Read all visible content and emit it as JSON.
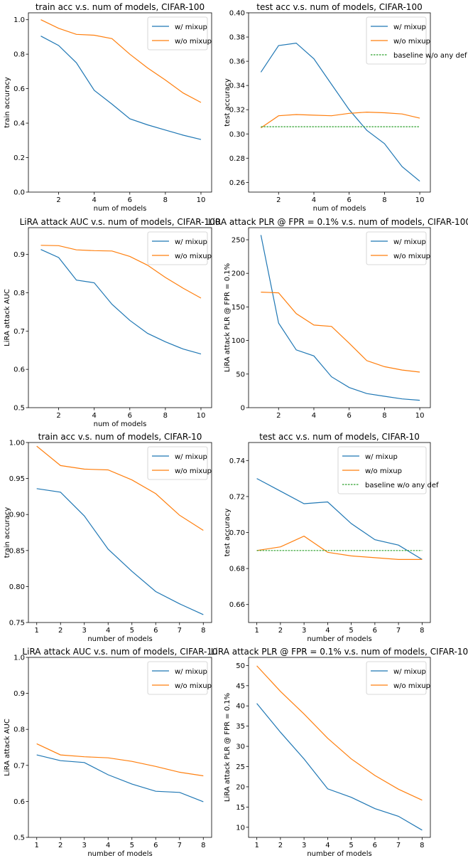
{
  "chart_data": [
    {
      "type": "line",
      "title": "train acc v.s. num of models, CIFAR-100",
      "xlabel": "num of models",
      "ylabel": "train accuracy",
      "xlim": [
        0.3,
        10.6
      ],
      "ylim": [
        0.0,
        1.04
      ],
      "xticks": [
        2,
        4,
        6,
        8,
        10
      ],
      "yticks": [
        0.0,
        0.2,
        0.4,
        0.6,
        0.8,
        1.0
      ],
      "ytick_labels": [
        "0.0",
        "0.2",
        "0.4",
        "0.6",
        "0.8",
        "1.0"
      ],
      "legend_position": "top-right",
      "x": [
        1,
        2,
        3,
        4,
        5,
        6,
        7,
        8,
        9,
        10
      ],
      "series": [
        {
          "name": "w/ mixup",
          "color": "#1f77b4",
          "values": [
            0.905,
            0.85,
            0.75,
            0.59,
            0.51,
            0.425,
            0.39,
            0.36,
            0.33,
            0.305
          ]
        },
        {
          "name": "w/o mixup",
          "color": "#ff7f0e",
          "values": [
            1.0,
            0.95,
            0.915,
            0.91,
            0.89,
            0.8,
            0.72,
            0.65,
            0.575,
            0.52
          ]
        }
      ]
    },
    {
      "type": "line",
      "title": "test acc v.s. num of models, CIFAR-100",
      "xlabel": "num of models",
      "ylabel": "test accuracy",
      "xlim": [
        0.3,
        10.6
      ],
      "ylim": [
        0.252,
        0.4
      ],
      "xticks": [
        2,
        4,
        6,
        8,
        10
      ],
      "yticks": [
        0.26,
        0.28,
        0.3,
        0.32,
        0.34,
        0.36,
        0.38,
        0.4
      ],
      "ytick_labels": [
        "0.26",
        "0.28",
        "0.30",
        "0.32",
        "0.34",
        "0.36",
        "0.38",
        "0.40"
      ],
      "legend_position": "top-right",
      "x": [
        1,
        2,
        3,
        4,
        5,
        6,
        7,
        8,
        9,
        10
      ],
      "series": [
        {
          "name": "w/ mixup",
          "color": "#1f77b4",
          "values": [
            0.351,
            0.373,
            0.375,
            0.362,
            0.341,
            0.32,
            0.303,
            0.292,
            0.273,
            0.261
          ]
        },
        {
          "name": "w/o mixup",
          "color": "#ff7f0e",
          "values": [
            0.305,
            0.315,
            0.316,
            0.3155,
            0.315,
            0.317,
            0.318,
            0.3175,
            0.3165,
            0.313
          ]
        },
        {
          "name": "baseline w/o any def",
          "color": "#2ca02c",
          "dashed": true,
          "values": [
            0.306,
            0.306,
            0.306,
            0.306,
            0.306,
            0.306,
            0.306,
            0.306,
            0.306,
            0.306
          ]
        }
      ]
    },
    {
      "type": "line",
      "title": "LiRA attack AUC v.s. num of models, CIFAR-100",
      "xlabel": "num of models",
      "ylabel": "LiRA attack AUC",
      "xlim": [
        0.3,
        10.6
      ],
      "ylim": [
        0.5,
        0.97
      ],
      "xticks": [
        2,
        4,
        6,
        8,
        10
      ],
      "yticks": [
        0.5,
        0.6,
        0.7,
        0.8,
        0.9
      ],
      "ytick_labels": [
        "0.5",
        "0.6",
        "0.7",
        "0.8",
        "0.9"
      ],
      "legend_position": "top-right",
      "x": [
        1,
        2,
        3,
        4,
        5,
        6,
        7,
        8,
        9,
        10
      ],
      "series": [
        {
          "name": "w/ mixup",
          "color": "#1f77b4",
          "values": [
            0.913,
            0.892,
            0.833,
            0.826,
            0.77,
            0.728,
            0.694,
            0.672,
            0.653,
            0.64
          ]
        },
        {
          "name": "w/o mixup",
          "color": "#ff7f0e",
          "values": [
            0.924,
            0.923,
            0.912,
            0.91,
            0.909,
            0.895,
            0.872,
            0.84,
            0.812,
            0.786
          ]
        }
      ]
    },
    {
      "type": "line",
      "title": "LiRA attack PLR @ FPR = 0.1% v.s. num of models, CIFAR-100",
      "xlabel": "",
      "ylabel": "LiRA attack PLR @ FPR = 0.1%",
      "xlim": [
        0.3,
        10.6
      ],
      "ylim": [
        0,
        268
      ],
      "xticks": [
        2,
        4,
        6,
        8,
        10
      ],
      "yticks": [
        0,
        50,
        100,
        150,
        200,
        250
      ],
      "ytick_labels": [
        "0",
        "50",
        "100",
        "150",
        "200",
        "250"
      ],
      "legend_position": "top-right",
      "x": [
        1,
        2,
        3,
        4,
        5,
        6,
        7,
        8,
        9,
        10
      ],
      "series": [
        {
          "name": "w/ mixup",
          "color": "#1f77b4",
          "values": [
            257,
            126,
            86,
            77,
            46,
            30,
            21,
            17,
            13,
            11
          ]
        },
        {
          "name": "w/o mixup",
          "color": "#ff7f0e",
          "values": [
            172,
            171,
            140,
            123,
            121,
            96,
            70,
            61,
            56,
            53
          ]
        }
      ]
    },
    {
      "type": "line",
      "title": "train acc v.s. num of models, CIFAR-10",
      "xlabel": "number of models",
      "ylabel": "train accuracy",
      "xlim": [
        0.65,
        8.35
      ],
      "ylim": [
        0.75,
        1.0
      ],
      "xticks": [
        1,
        2,
        3,
        4,
        5,
        6,
        7,
        8
      ],
      "yticks": [
        0.75,
        0.8,
        0.85,
        0.9,
        0.95,
        1.0
      ],
      "ytick_labels": [
        "0.75",
        "0.80",
        "0.85",
        "0.90",
        "0.95",
        "1.00"
      ],
      "legend_position": "top-right",
      "x": [
        1,
        2,
        3,
        4,
        5,
        6,
        7,
        8
      ],
      "series": [
        {
          "name": "w/ mixup",
          "color": "#1f77b4",
          "values": [
            0.936,
            0.931,
            0.898,
            0.852,
            0.821,
            0.793,
            0.776,
            0.761
          ]
        },
        {
          "name": "w/o mixup",
          "color": "#ff7f0e",
          "values": [
            0.995,
            0.968,
            0.963,
            0.962,
            0.948,
            0.929,
            0.899,
            0.878
          ]
        }
      ]
    },
    {
      "type": "line",
      "title": "test acc v.s. num of models, CIFAR-10",
      "xlabel": "number of models",
      "ylabel": "test accuracy",
      "xlim": [
        0.65,
        8.35
      ],
      "ylim": [
        0.65,
        0.75
      ],
      "xticks": [
        1,
        2,
        3,
        4,
        5,
        6,
        7,
        8
      ],
      "yticks": [
        0.66,
        0.68,
        0.7,
        0.72,
        0.74
      ],
      "ytick_labels": [
        "0.66",
        "0.68",
        "0.70",
        "0.72",
        "0.74"
      ],
      "legend_position": "top-right",
      "x": [
        1,
        2,
        3,
        4,
        5,
        6,
        7,
        8
      ],
      "series": [
        {
          "name": "w/ mixup",
          "color": "#1f77b4",
          "values": [
            0.73,
            0.723,
            0.716,
            0.717,
            0.705,
            0.696,
            0.693,
            0.685
          ]
        },
        {
          "name": "w/o mixup",
          "color": "#ff7f0e",
          "values": [
            0.69,
            0.692,
            0.698,
            0.689,
            0.687,
            0.686,
            0.685,
            0.685
          ]
        },
        {
          "name": "baseline w/o any def",
          "color": "#2ca02c",
          "dashed": true,
          "values": [
            0.69,
            0.69,
            0.69,
            0.69,
            0.69,
            0.69,
            0.69,
            0.69
          ]
        }
      ]
    },
    {
      "type": "line",
      "title": "LiRA attack AUC v.s. num of models, CIFAR-10",
      "xlabel": "number of models",
      "ylabel": "LiRA attack AUC",
      "xlim": [
        0.65,
        8.35
      ],
      "ylim": [
        0.5,
        1.0
      ],
      "xticks": [
        1,
        2,
        3,
        4,
        5,
        6,
        7,
        8
      ],
      "yticks": [
        0.5,
        0.6,
        0.7,
        0.8,
        0.9,
        1.0
      ],
      "ytick_labels": [
        "0.5",
        "0.6",
        "0.7",
        "0.8",
        "0.9",
        "1.0"
      ],
      "legend_position": "top-right",
      "x": [
        1,
        2,
        3,
        4,
        5,
        6,
        7,
        8
      ],
      "series": [
        {
          "name": "w/ mixup",
          "color": "#1f77b4",
          "values": [
            0.729,
            0.713,
            0.708,
            0.674,
            0.648,
            0.628,
            0.625,
            0.599
          ]
        },
        {
          "name": "w/o mixup",
          "color": "#ff7f0e",
          "values": [
            0.76,
            0.729,
            0.724,
            0.721,
            0.711,
            0.697,
            0.681,
            0.671
          ]
        }
      ]
    },
    {
      "type": "line",
      "title": "LiRA attack PLR @ FPR = 0.1% v.s. num of models, CIFAR-10",
      "xlabel": "number of models",
      "ylabel": "LiRA attack PLR @ FPR = 0.1%",
      "xlim": [
        0.65,
        8.35
      ],
      "ylim": [
        7.5,
        52
      ],
      "xticks": [
        1,
        2,
        3,
        4,
        5,
        6,
        7,
        8
      ],
      "yticks": [
        10,
        15,
        20,
        25,
        30,
        35,
        40,
        45,
        50
      ],
      "ytick_labels": [
        "10",
        "15",
        "20",
        "25",
        "30",
        "35",
        "40",
        "45",
        "50"
      ],
      "legend_position": "top-right",
      "x": [
        1,
        2,
        3,
        4,
        5,
        6,
        7,
        8
      ],
      "series": [
        {
          "name": "w/ mixup",
          "color": "#1f77b4",
          "values": [
            40.6,
            33.5,
            26.9,
            19.5,
            17.4,
            14.6,
            12.7,
            9.3
          ]
        },
        {
          "name": "w/o mixup",
          "color": "#ff7f0e",
          "values": [
            49.9,
            43.6,
            38.0,
            32.0,
            26.9,
            22.8,
            19.4,
            16.7
          ]
        }
      ]
    }
  ]
}
